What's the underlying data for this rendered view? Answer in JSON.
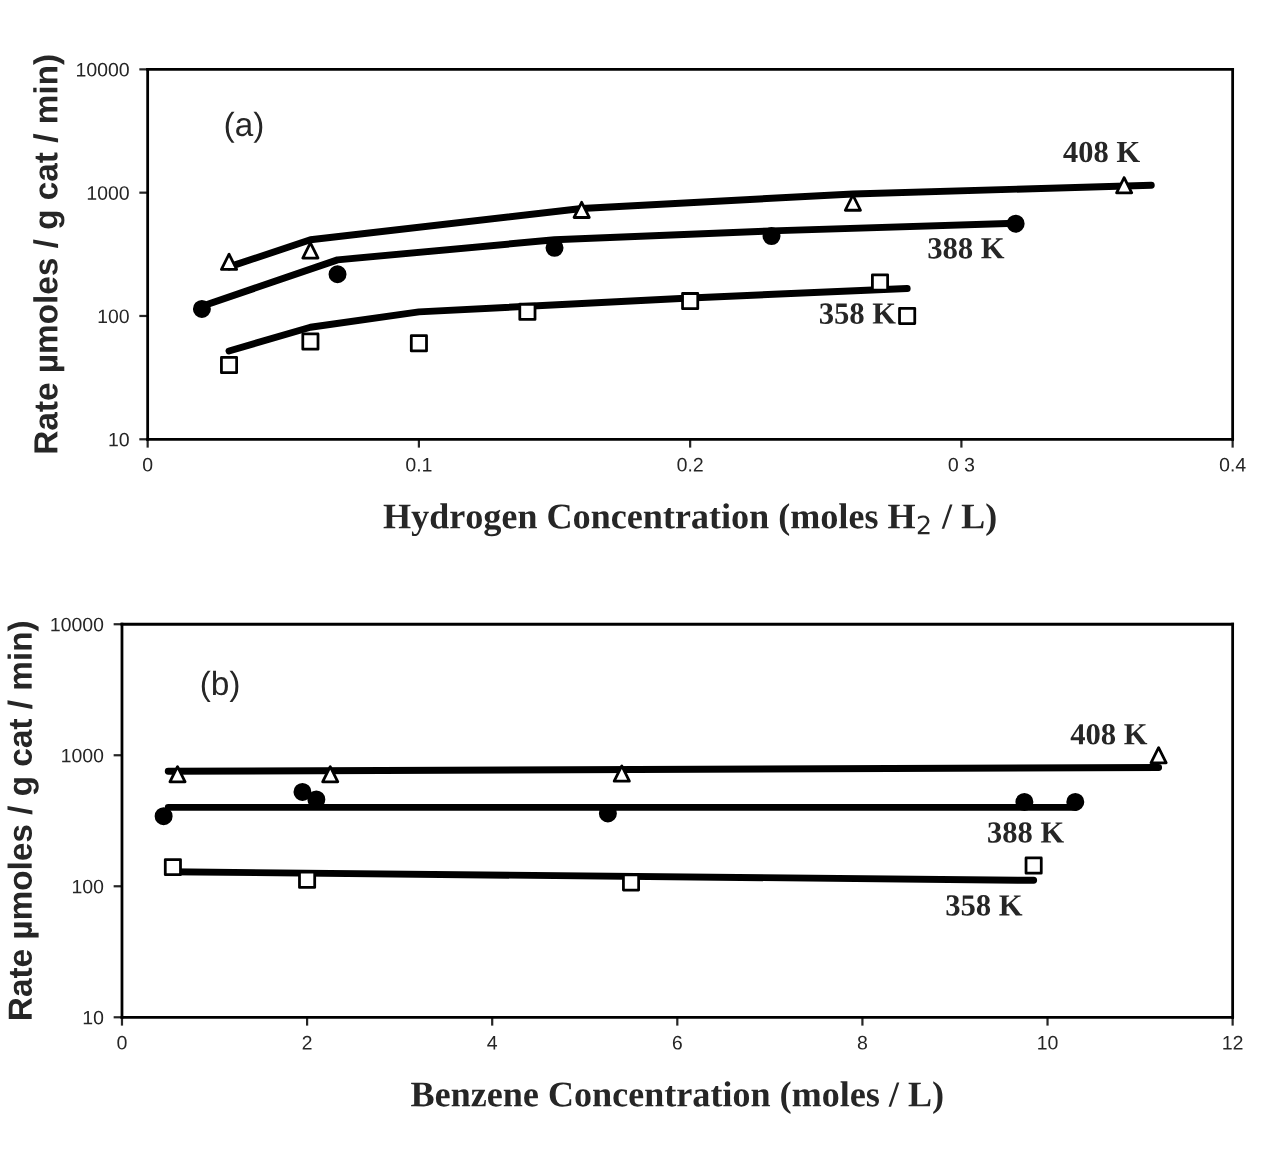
{
  "chart_data": [
    {
      "type": "scatter",
      "xlabel": "Hydrogen Concentration (moles H$_{2}$ / L)",
      "ylabel": "Rate µmoles / g cat / min)",
      "annotations": [
        "(a)"
      ],
      "log": "y",
      "grid": false,
      "legend": false,
      "xlim": [
        0,
        0.4
      ],
      "xticks": [
        0,
        0.1,
        0.2,
        {
          "value": 0.3,
          "label": "0 3"
        },
        0.4
      ],
      "ylim": [
        10,
        10000
      ],
      "yticks": [
        10,
        100,
        1000,
        10000
      ],
      "series": [
        {
          "marker": "triangle",
          "color": "#000000",
          "x": [
            0.03,
            0.06,
            0.16,
            0.26,
            0.36
          ],
          "values": [
            275,
            340,
            725,
            830,
            1150
          ]
        },
        {
          "marker": "circle",
          "color": "#000000",
          "x": [
            0.02,
            0.07,
            0.15,
            0.23,
            0.32
          ],
          "values": [
            114,
            218,
            357,
            445,
            560
          ]
        },
        {
          "marker": "square",
          "color": "#000000",
          "x": [
            0.03,
            0.06,
            0.1,
            0.14,
            0.2,
            0.27,
            0.28
          ],
          "values": [
            40,
            62,
            60,
            108,
            132,
            187,
            100
          ]
        },
        {
          "type": "line",
          "name": "408 K",
          "color": "#000000",
          "x": [
            0.03,
            0.06,
            0.16,
            0.26,
            0.37
          ],
          "values": [
            250,
            415,
            745,
            975,
            1150
          ]
        },
        {
          "type": "line",
          "name": "388 K",
          "color": "#000000",
          "x": [
            0.02,
            0.07,
            0.15,
            0.23,
            0.32
          ],
          "values": [
            120,
            285,
            415,
            490,
            565
          ]
        },
        {
          "type": "line",
          "name": "358 K",
          "color": "#000000",
          "x": [
            0.03,
            0.06,
            0.1,
            0.2,
            0.28
          ],
          "values": [
            52,
            81,
            108,
            140,
            167
          ]
        }
      ]
    },
    {
      "type": "scatter",
      "xlabel": "Benzene Concentration (moles / L)",
      "ylabel": "Rate µmoles / g cat / min)",
      "annotations": [
        "(b)"
      ],
      "log": "y",
      "grid": false,
      "legend": false,
      "xlim": [
        0,
        12
      ],
      "xticks": [
        0,
        2,
        4,
        6,
        8,
        10,
        12
      ],
      "ylim": [
        10,
        10000
      ],
      "yticks": [
        10,
        100,
        1000,
        10000
      ],
      "series": [
        {
          "marker": "triangle",
          "color": "#000000",
          "x": [
            0.6,
            2.25,
            5.4,
            11.2
          ],
          "values": [
            716,
            716,
            725,
            1000
          ]
        },
        {
          "marker": "circle",
          "color": "#000000",
          "x": [
            0.45,
            1.95,
            2.1,
            5.25,
            9.75,
            10.3
          ],
          "values": [
            343,
            525,
            460,
            360,
            440,
            440
          ]
        },
        {
          "marker": "square",
          "color": "#000000",
          "x": [
            0.55,
            2.0,
            5.5,
            9.85
          ],
          "values": [
            140,
            112,
            107,
            144
          ]
        },
        {
          "type": "line",
          "name": "408 K",
          "color": "#000000",
          "x": [
            0.5,
            11.2
          ],
          "values": [
            755,
            807
          ]
        },
        {
          "type": "line",
          "name": "388 K",
          "color": "#000000",
          "x": [
            0.5,
            10.3
          ],
          "values": [
            400,
            400
          ]
        },
        {
          "type": "line",
          "name": "358 K",
          "color": "#000000",
          "x": [
            0.5,
            9.85
          ],
          "values": [
            129,
            111
          ]
        }
      ]
    }
  ]
}
